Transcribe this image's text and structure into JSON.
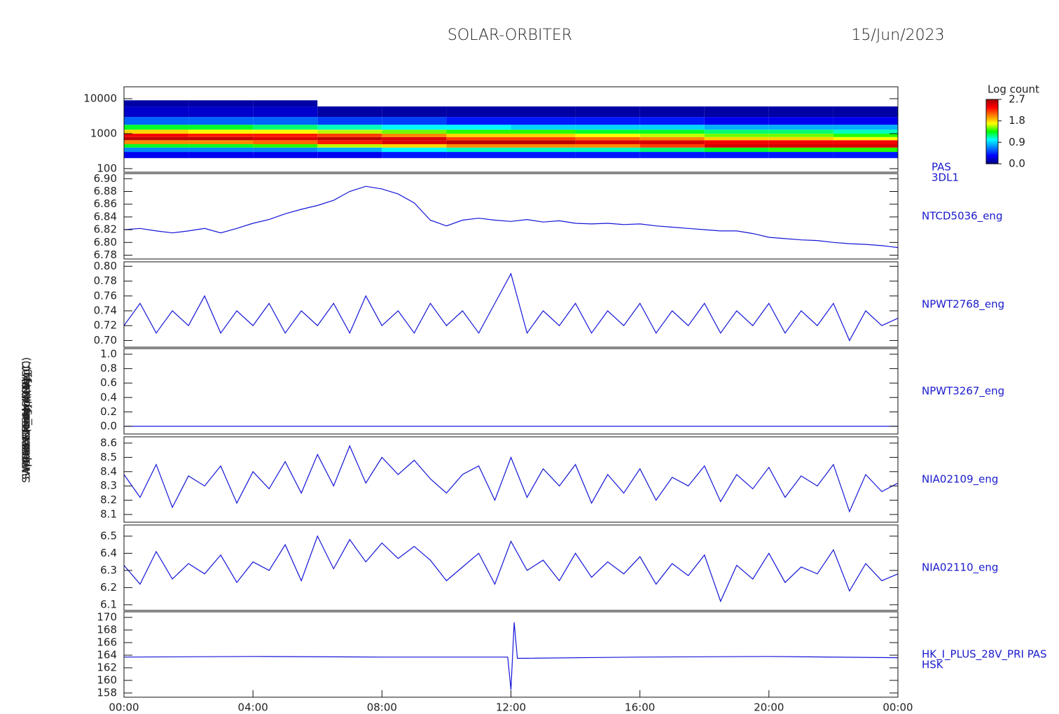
{
  "chart_data": [
    {
      "type": "heatmap",
      "title": "SOLAR-ORBITER",
      "date": "15/Jun/2023",
      "ylabel": "PAS Energy (eV)",
      "label": [
        "PAS",
        "3DL1"
      ],
      "log_y": true,
      "xlim": [
        0,
        24
      ],
      "ylim": [
        79,
        21900
      ],
      "yticks": [
        100,
        1000,
        10000
      ],
      "xbins": [
        0,
        2,
        4,
        6,
        8,
        10,
        12,
        14,
        16,
        18,
        20,
        22,
        24
      ],
      "ybins": [
        200,
        300,
        400,
        500,
        650,
        800,
        1000,
        1300,
        1800,
        3000,
        6000,
        9000
      ],
      "values": [
        [
          0.3,
          0.3,
          0.3,
          0.3,
          0.4,
          0.4,
          0.4,
          0.4,
          0.4,
          0.4,
          0.4,
          0.4
        ],
        [
          0.7,
          0.7,
          0.7,
          0.8,
          1.0,
          1.1,
          1.1,
          1.1,
          1.2,
          1.3,
          1.4,
          1.4
        ],
        [
          1.3,
          1.3,
          1.4,
          1.6,
          1.8,
          2.0,
          2.0,
          2.0,
          2.2,
          2.5,
          2.5,
          2.5
        ],
        [
          2.0,
          2.0,
          2.1,
          2.3,
          2.5,
          2.6,
          2.6,
          2.5,
          2.5,
          2.4,
          2.4,
          2.4
        ],
        [
          2.6,
          2.6,
          2.5,
          2.6,
          2.5,
          2.2,
          2.2,
          2.1,
          2.0,
          1.8,
          1.8,
          1.7
        ],
        [
          2.4,
          2.3,
          2.3,
          2.2,
          2.0,
          1.8,
          1.8,
          1.7,
          1.6,
          1.5,
          1.5,
          1.4
        ],
        [
          1.8,
          1.7,
          1.7,
          1.6,
          1.5,
          1.4,
          1.4,
          1.3,
          1.3,
          1.2,
          1.2,
          1.1
        ],
        [
          1.3,
          1.3,
          1.2,
          1.1,
          1.0,
          1.0,
          0.9,
          0.9,
          0.9,
          0.8,
          0.8,
          0.8
        ],
        [
          0.6,
          0.6,
          0.6,
          0.5,
          0.5,
          0.4,
          0.4,
          0.4,
          0.4,
          0.3,
          0.3,
          0.3
        ],
        [
          0.2,
          0.2,
          0.2,
          0.1,
          0.1,
          0.1,
          0.1,
          0.1,
          0.1,
          0.1,
          0.1,
          0.1
        ],
        [
          0.1,
          0.1,
          0.1,
          null,
          null,
          null,
          null,
          null,
          null,
          null,
          null,
          null
        ]
      ],
      "colorbar": {
        "title": "Log count",
        "range": [
          0,
          2.7
        ],
        "ticks": [
          {
            "value": 0,
            "label": "0.0"
          },
          {
            "value": 0.9,
            "label": "0.9"
          },
          {
            "value": 1.8,
            "label": "1.8"
          },
          {
            "value": 2.7,
            "label": "2.7"
          }
        ],
        "colors": [
          "#00007f",
          "#0000ff",
          "#0080ff",
          "#00ffff",
          "#00ff00",
          "#ffff00",
          "#ff8000",
          "#ff0000",
          "#a00000"
        ]
      }
    },
    {
      "type": "line",
      "ylabel": "Approx Temp (DegC)",
      "label": [
        "NTCD5036_eng"
      ],
      "color": "#1414d8",
      "xlim": [
        0,
        24
      ],
      "ylim": [
        6.774,
        6.908
      ],
      "yticks": [
        {
          "value": 6.78,
          "label": "6.78"
        },
        {
          "value": 6.8,
          "label": "6.80"
        },
        {
          "value": 6.82,
          "label": "6.82"
        },
        {
          "value": 6.84,
          "label": "6.84"
        },
        {
          "value": 6.86,
          "label": "6.86"
        },
        {
          "value": 6.88,
          "label": "6.88"
        },
        {
          "value": 6.9,
          "label": "6.90"
        }
      ],
      "x": [
        0,
        0.5,
        1,
        1.5,
        2,
        2.5,
        3,
        3.5,
        4,
        4.5,
        5,
        5.5,
        6,
        6.5,
        7,
        7.5,
        8,
        8.5,
        9,
        9.5,
        10,
        10.5,
        11,
        11.5,
        12,
        12.5,
        13,
        13.5,
        14,
        14.5,
        15,
        15.5,
        16,
        16.5,
        17,
        17.5,
        18,
        18.5,
        19,
        19.5,
        20,
        20.5,
        21,
        21.5,
        22,
        22.5,
        23,
        23.5,
        24
      ],
      "values": [
        6.82,
        6.822,
        6.818,
        6.815,
        6.818,
        6.822,
        6.815,
        6.822,
        6.83,
        6.836,
        6.845,
        6.852,
        6.858,
        6.866,
        6.88,
        6.888,
        6.884,
        6.876,
        6.862,
        6.835,
        6.826,
        6.835,
        6.838,
        6.835,
        6.833,
        6.836,
        6.832,
        6.834,
        6.83,
        6.829,
        6.83,
        6.828,
        6.829,
        6.826,
        6.824,
        6.822,
        6.82,
        6.818,
        6.818,
        6.814,
        6.808,
        6.806,
        6.804,
        6.803,
        6.8,
        6.798,
        6.797,
        6.795,
        6.792
      ]
    },
    {
      "type": "line",
      "ylabel": "SWA-EAS Temp (DegC)",
      "label": [
        "NPWT2768_eng"
      ],
      "color": "#1414d8",
      "xlim": [
        0,
        24
      ],
      "ylim": [
        0.691,
        0.806
      ],
      "yticks": [
        {
          "value": 0.7,
          "label": "0.70"
        },
        {
          "value": 0.72,
          "label": "0.72"
        },
        {
          "value": 0.74,
          "label": "0.74"
        },
        {
          "value": 0.76,
          "label": "0.76"
        },
        {
          "value": 0.78,
          "label": "0.78"
        },
        {
          "value": 0.8,
          "label": "0.80"
        }
      ],
      "x": [
        0,
        0.5,
        1,
        1.5,
        2,
        2.5,
        3,
        3.5,
        4,
        4.5,
        5,
        5.5,
        6,
        6.5,
        7,
        7.5,
        8,
        8.5,
        9,
        9.5,
        10,
        10.5,
        11,
        11.5,
        12,
        12.5,
        13,
        13.5,
        14,
        14.5,
        15,
        15.5,
        16,
        16.5,
        17,
        17.5,
        18,
        18.5,
        19,
        19.5,
        20,
        20.5,
        21,
        21.5,
        22,
        22.5,
        23,
        23.5,
        24
      ],
      "values": [
        0.72,
        0.75,
        0.71,
        0.74,
        0.72,
        0.76,
        0.71,
        0.74,
        0.72,
        0.75,
        0.71,
        0.74,
        0.72,
        0.75,
        0.71,
        0.76,
        0.72,
        0.74,
        0.71,
        0.75,
        0.72,
        0.74,
        0.71,
        0.75,
        0.79,
        0.71,
        0.74,
        0.72,
        0.75,
        0.71,
        0.74,
        0.72,
        0.75,
        0.71,
        0.74,
        0.72,
        0.75,
        0.71,
        0.74,
        0.72,
        0.75,
        0.71,
        0.74,
        0.72,
        0.75,
        0.7,
        0.74,
        0.72,
        0.73
      ]
    },
    {
      "type": "line",
      "ylabel": "SWA-EAS2 Temp (DegC)",
      "label": [
        "NPWT3267_eng"
      ],
      "color": "#1414d8",
      "xlim": [
        0,
        24
      ],
      "ylim": [
        -0.107,
        1.078
      ],
      "yticks": [
        {
          "value": 0,
          "label": "0.0"
        },
        {
          "value": 0.2,
          "label": "0.2"
        },
        {
          "value": 0.4,
          "label": "0.4"
        },
        {
          "value": 0.6,
          "label": "0.6"
        },
        {
          "value": 0.8,
          "label": "0.8"
        },
        {
          "value": 1,
          "label": "1.0"
        }
      ],
      "x": [
        0,
        4,
        8,
        12,
        16,
        20,
        24
      ],
      "values": [
        0,
        0,
        0,
        0,
        0,
        0,
        0
      ]
    },
    {
      "type": "line",
      "ylabel": "THERM_CH4 (V)",
      "label": [
        "NIA02109_eng"
      ],
      "color": "#1414d8",
      "xlim": [
        0,
        24
      ],
      "ylim": [
        8.046,
        8.644
      ],
      "yticks": [
        8.1,
        8.2,
        8.3,
        8.4,
        8.5,
        8.6
      ],
      "x": [
        0,
        0.5,
        1,
        1.5,
        2,
        2.5,
        3,
        3.5,
        4,
        4.5,
        5,
        5.5,
        6,
        6.5,
        7,
        7.5,
        8,
        8.5,
        9,
        9.5,
        10,
        10.5,
        11,
        11.5,
        12,
        12.5,
        13,
        13.5,
        14,
        14.5,
        15,
        15.5,
        16,
        16.5,
        17,
        17.5,
        18,
        18.5,
        19,
        19.5,
        20,
        20.5,
        21,
        21.5,
        22,
        22.5,
        23,
        23.5,
        24
      ],
      "values": [
        8.38,
        8.22,
        8.45,
        8.15,
        8.37,
        8.3,
        8.44,
        8.18,
        8.4,
        8.28,
        8.47,
        8.25,
        8.52,
        8.3,
        8.58,
        8.32,
        8.5,
        8.38,
        8.48,
        8.35,
        8.25,
        8.38,
        8.44,
        8.2,
        8.5,
        8.22,
        8.42,
        8.3,
        8.45,
        8.18,
        8.38,
        8.25,
        8.42,
        8.2,
        8.36,
        8.3,
        8.44,
        8.19,
        8.38,
        8.28,
        8.43,
        8.22,
        8.37,
        8.3,
        8.45,
        8.12,
        8.38,
        8.26,
        8.32
      ]
    },
    {
      "type": "line",
      "ylabel": "RPW HK_IMON (V)",
      "label": [
        "NIA02110_eng"
      ],
      "color": "#1414d8",
      "xlim": [
        0,
        24
      ],
      "ylim": [
        6.067,
        6.565
      ],
      "yticks": [
        6.1,
        6.2,
        6.3,
        6.4,
        6.5
      ],
      "x": [
        0,
        0.5,
        1,
        1.5,
        2,
        2.5,
        3,
        3.5,
        4,
        4.5,
        5,
        5.5,
        6,
        6.5,
        7,
        7.5,
        8,
        8.5,
        9,
        9.5,
        10,
        10.5,
        11,
        11.5,
        12,
        12.5,
        13,
        13.5,
        14,
        14.5,
        15,
        15.5,
        16,
        16.5,
        17,
        17.5,
        18,
        18.5,
        19,
        19.5,
        20,
        20.5,
        21,
        21.5,
        22,
        22.5,
        23,
        23.5,
        24
      ],
      "values": [
        6.33,
        6.22,
        6.41,
        6.25,
        6.34,
        6.28,
        6.39,
        6.23,
        6.35,
        6.3,
        6.45,
        6.24,
        6.5,
        6.31,
        6.48,
        6.35,
        6.46,
        6.37,
        6.44,
        6.36,
        6.24,
        6.32,
        6.4,
        6.22,
        6.47,
        6.3,
        6.36,
        6.24,
        6.4,
        6.26,
        6.35,
        6.28,
        6.38,
        6.22,
        6.34,
        6.27,
        6.39,
        6.12,
        6.33,
        6.25,
        6.4,
        6.23,
        6.32,
        6.28,
        6.42,
        6.18,
        6.34,
        6.24,
        6.28
      ]
    },
    {
      "type": "line",
      "ylabel": "(mA)",
      "label": [
        "HK_I_PLUS_28V_PRI PAS",
        "HSK"
      ],
      "color": "#1414d8",
      "xlim": [
        0,
        24
      ],
      "ylim": [
        157.33,
        170.89
      ],
      "yticks": [
        158,
        160,
        162,
        164,
        166,
        168,
        170
      ],
      "x": [
        0,
        4,
        8,
        11.9,
        12,
        12.1,
        12.2,
        16,
        20,
        24
      ],
      "values": [
        163.7,
        163.8,
        163.7,
        163.7,
        158.5,
        169.2,
        163.5,
        163.7,
        163.8,
        163.6
      ],
      "xticks": [
        {
          "value": 0,
          "label": "00:00"
        },
        {
          "value": 4,
          "label": "04:00"
        },
        {
          "value": 8,
          "label": "08:00"
        },
        {
          "value": 12,
          "label": "12:00"
        },
        {
          "value": 16,
          "label": "16:00"
        },
        {
          "value": 20,
          "label": "20:00"
        },
        {
          "value": 24,
          "label": "00:00"
        }
      ]
    }
  ]
}
